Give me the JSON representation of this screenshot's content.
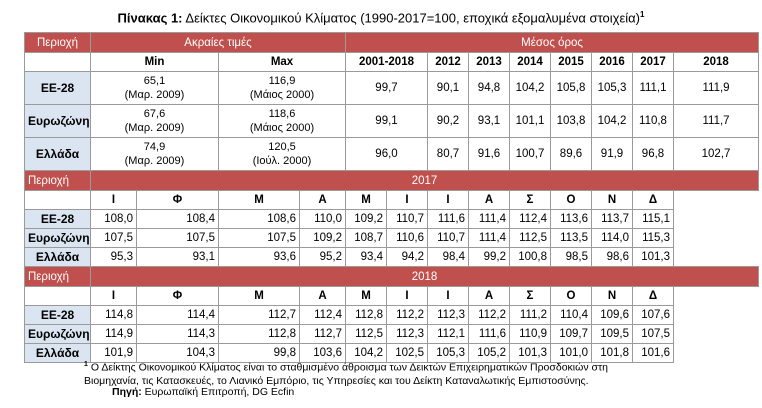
{
  "title": {
    "bold": "Πίνακας 1:",
    "text": "Δείκτες Οικονομικού Κλίματος (1990-2017=100, εποχικά εξομαλυμένα στοιχεία)",
    "mark": "1"
  },
  "top": {
    "region_label": "Περιοχή",
    "extremes_label": "Ακραίες τιμές",
    "average_label": "Μέσος όρος",
    "min_label": "Min",
    "max_label": "Max",
    "periods": [
      "2001-2018",
      "2012",
      "2013",
      "2014",
      "2015",
      "2016",
      "2017",
      "2018"
    ],
    "rows": [
      {
        "name": "ΕΕ-28",
        "min_val": "65,1",
        "min_date": "(Μαρ. 2009)",
        "max_val": "116,9",
        "max_date": "(Μάιος 2000)",
        "values": [
          "99,7",
          "90,1",
          "94,8",
          "104,2",
          "105,8",
          "105,3",
          "111,1",
          "111,9"
        ]
      },
      {
        "name": "Ευρωζώνη",
        "min_val": "67,6",
        "min_date": "(Μαρ. 2009)",
        "max_val": "118,6",
        "max_date": "(Μάιος 2000)",
        "values": [
          "99,1",
          "90,2",
          "93,1",
          "101,1",
          "103,8",
          "104,2",
          "110,8",
          "111,7"
        ]
      },
      {
        "name": "Ελλάδα",
        "min_val": "74,9",
        "min_date": "(Μαρ. 2009)",
        "max_val": "120,5",
        "max_date": "(Ιούλ. 2000)",
        "values": [
          "96,0",
          "80,7",
          "91,6",
          "100,7",
          "89,6",
          "91,9",
          "96,8",
          "102,7"
        ]
      }
    ]
  },
  "months": [
    "Ι",
    "Φ",
    "Μ",
    "Α",
    "Μ",
    "Ι",
    "Ι",
    "Α",
    "Σ",
    "Ο",
    "Ν",
    "Δ"
  ],
  "y2017": {
    "region_label": "Περιοχή",
    "year": "2017",
    "rows": [
      {
        "name": "ΕΕ-28",
        "values": [
          "108,0",
          "108,4",
          "108,6",
          "110,0",
          "109,2",
          "110,7",
          "111,6",
          "111,4",
          "112,4",
          "113,6",
          "113,7",
          "115,1"
        ]
      },
      {
        "name": "Ευρωζώνη",
        "values": [
          "107,5",
          "107,5",
          "107,5",
          "109,2",
          "108,7",
          "110,6",
          "110,7",
          "111,4",
          "112,5",
          "113,5",
          "114,0",
          "115,3"
        ]
      },
      {
        "name": "Ελλάδα",
        "values": [
          "95,3",
          "93,1",
          "93,6",
          "95,2",
          "93,4",
          "94,2",
          "98,4",
          "99,2",
          "100,8",
          "98,5",
          "98,6",
          "101,3"
        ]
      }
    ]
  },
  "y2018": {
    "region_label": "Περιοχή",
    "year": "2018",
    "rows": [
      {
        "name": "ΕΕ-28",
        "values": [
          "114,8",
          "114,4",
          "112,7",
          "112,4",
          "112,8",
          "112,2",
          "112,3",
          "112,2",
          "111,2",
          "110,4",
          "109,6",
          "107,6"
        ]
      },
      {
        "name": "Ευρωζώνη",
        "values": [
          "114,9",
          "114,3",
          "112,8",
          "112,7",
          "112,5",
          "112,3",
          "112,1",
          "111,6",
          "110,9",
          "109,7",
          "109,5",
          "107,5"
        ]
      },
      {
        "name": "Ελλάδα",
        "values": [
          "101,9",
          "104,3",
          "99,8",
          "103,6",
          "104,2",
          "102,5",
          "105,3",
          "105,2",
          "101,3",
          "101,0",
          "101,8",
          "101,6"
        ]
      }
    ]
  },
  "footnote": {
    "mark": "1",
    "line1": "Ο Δείκτης Οικονομικού Κλίματος είναι το σταθμισμένο άθροισμα των Δεικτών Επιχειρηματικών Προσδοκιών στη",
    "line2": "Βιομηχανία, τις Κατασκευές, το Λιανικό Εμπόριο, τις Υπηρεσίες και του Δείκτη Καταναλωτικής Εμπιστοσύνης."
  },
  "source": {
    "label": "Πηγή:",
    "text": "Ευρωπαϊκή Επιτροπή, DG Ecfin"
  }
}
